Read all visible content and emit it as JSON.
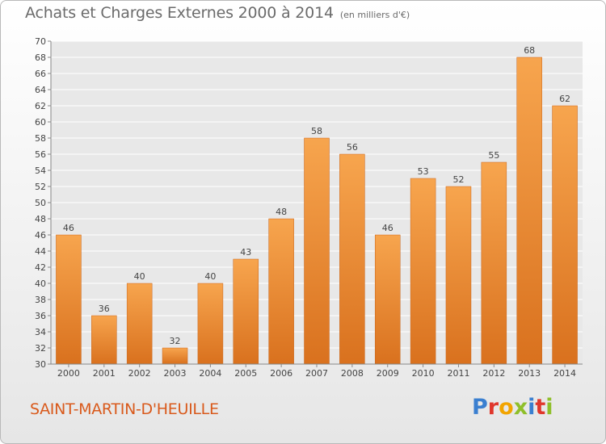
{
  "header": {
    "title": "Achats et Charges Externes 2000 à 2014",
    "subtitle": "(en milliers d'€)"
  },
  "footer": {
    "place": "SAINT-MARTIN-D'HEUILLE",
    "brand": "Proxiti",
    "brand_colors": [
      "#3a7fd0",
      "#e0372c",
      "#f2a400",
      "#8fbf2a",
      "#3a7fd0",
      "#e0372c",
      "#8fbf2a"
    ]
  },
  "colors": {
    "bar_light": "#f7a54e",
    "bar_dark": "#d9711e",
    "grid": "#ffffff",
    "axis_text": "#444444"
  },
  "chart_data": {
    "type": "bar",
    "title": "Achats et Charges Externes 2000 à 2014",
    "subtitle": "(en milliers d'€)",
    "xlabel": "",
    "ylabel": "",
    "categories": [
      "2000",
      "2001",
      "2002",
      "2003",
      "2004",
      "2005",
      "2006",
      "2007",
      "2008",
      "2009",
      "2010",
      "2011",
      "2012",
      "2013",
      "2014"
    ],
    "values": [
      46,
      36,
      40,
      32,
      40,
      43,
      48,
      58,
      56,
      46,
      53,
      52,
      55,
      68,
      62
    ],
    "ylim": [
      30,
      70
    ],
    "yticks": [
      30,
      32,
      34,
      36,
      38,
      40,
      42,
      44,
      46,
      48,
      50,
      52,
      54,
      56,
      58,
      60,
      62,
      64,
      66,
      68,
      70
    ],
    "grid": true,
    "data_labels": true
  }
}
